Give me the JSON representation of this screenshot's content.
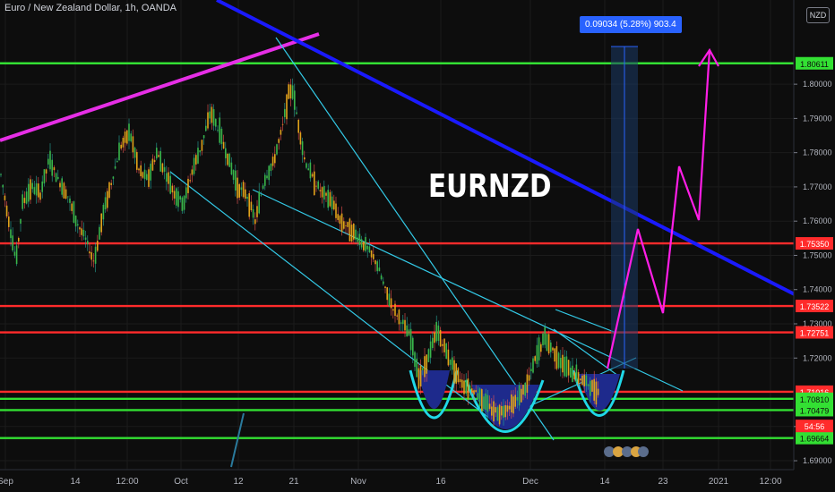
{
  "header": {
    "title": "Euro / New Zealand Dollar, 1h, OANDA",
    "currency": "NZD"
  },
  "annotations": {
    "symbol_label": "EURNZD",
    "measure_label": "0.09034 (5.28%) 903.4"
  },
  "chart_data": {
    "type": "candlestick",
    "title": "Euro / New Zealand Dollar, 1h, OANDA",
    "ylim": [
      1.6874,
      1.8246
    ],
    "y_ticks": [
      "1.80000",
      "1.79000",
      "1.78000",
      "1.77000",
      "1.76000",
      "1.75000",
      "1.74000",
      "1.73000",
      "1.72000",
      "1.70000",
      "1.69000"
    ],
    "y_tick_values": [
      1.8,
      1.79,
      1.78,
      1.77,
      1.76,
      1.75,
      1.74,
      1.73,
      1.72,
      1.7,
      1.69
    ],
    "x_ticks": [
      "Sep",
      "14",
      "12:00",
      "Oct",
      "12",
      "21",
      "Nov",
      "16",
      "Dec",
      "14",
      "23",
      "2021",
      "12:00"
    ],
    "price_levels": [
      {
        "label": "1.80611",
        "value": 1.80611,
        "color": "#33e033"
      },
      {
        "label": "1.75350",
        "value": 1.7535,
        "color": "#ff2b2b"
      },
      {
        "label": "1.73522",
        "value": 1.73522,
        "color": "#ff2b2b"
      },
      {
        "label": "1.72751",
        "value": 1.72751,
        "color": "#ff2b2b"
      },
      {
        "label": "1.71016",
        "value": 1.71016,
        "color": "#ff2b2b"
      },
      {
        "label": "1.70810",
        "value": 1.7081,
        "color": "#33e033"
      },
      {
        "label": "1.70479",
        "value": 1.70479,
        "color": "#33e033"
      },
      {
        "label": "1.69664",
        "value": 1.69664,
        "color": "#33e033"
      }
    ],
    "last_price_time": "54:56",
    "price_path": [
      1.775,
      1.76,
      1.748,
      1.765,
      1.77,
      1.768,
      1.778,
      1.772,
      1.768,
      1.76,
      1.755,
      1.748,
      1.762,
      1.772,
      1.782,
      1.786,
      1.775,
      1.772,
      1.78,
      1.774,
      1.768,
      1.765,
      1.775,
      1.782,
      1.792,
      1.786,
      1.778,
      1.77,
      1.768,
      1.76,
      1.772,
      1.777,
      1.787,
      1.797,
      1.799,
      1.79,
      1.778,
      1.772,
      1.768,
      1.766,
      1.76,
      1.758,
      1.755,
      1.752,
      1.748,
      1.74,
      1.734,
      1.73,
      1.726,
      1.714,
      1.72,
      1.728,
      1.722,
      1.716,
      1.712,
      1.711,
      1.708,
      1.705,
      1.704,
      1.706,
      1.708,
      1.712,
      1.72,
      1.726,
      1.722,
      1.718,
      1.716,
      1.714,
      1.712,
      1.71
    ],
    "price_x": [
      0,
      10,
      18,
      25,
      35,
      45,
      55,
      65,
      75,
      85,
      95,
      105,
      115,
      125,
      135,
      145,
      155,
      165,
      175,
      185,
      195,
      205,
      215,
      225,
      235,
      245,
      255,
      265,
      275,
      285,
      295,
      305,
      315,
      322,
      326,
      332,
      340,
      350,
      360,
      370,
      380,
      390,
      400,
      410,
      420,
      430,
      440,
      450,
      458,
      468,
      478,
      488,
      498,
      508,
      518,
      528,
      538,
      548,
      558,
      568,
      578,
      588,
      598,
      608,
      618,
      628,
      638,
      648,
      658,
      668,
      680
    ],
    "projection": [
      [
        678,
        412
      ],
      [
        712,
        256
      ],
      [
        740,
        350
      ],
      [
        758,
        186
      ],
      [
        780,
        246
      ],
      [
        792,
        56
      ]
    ],
    "projection_color": "#ff1ee6",
    "legend": "none",
    "grid": true
  },
  "colors": {
    "background": "#0d0d0d",
    "grid": "#1b1b1b",
    "upper_trend": "#e62ee6",
    "resistance_trend": "#1a1aff",
    "channel_lines": "#33c9e6",
    "cup_fill": "#1e2a8c",
    "cup_stroke": "#20d8e8",
    "support_green": "#33e033",
    "resistance_red": "#ff2b2b",
    "axis_text": "#b2b5be"
  }
}
